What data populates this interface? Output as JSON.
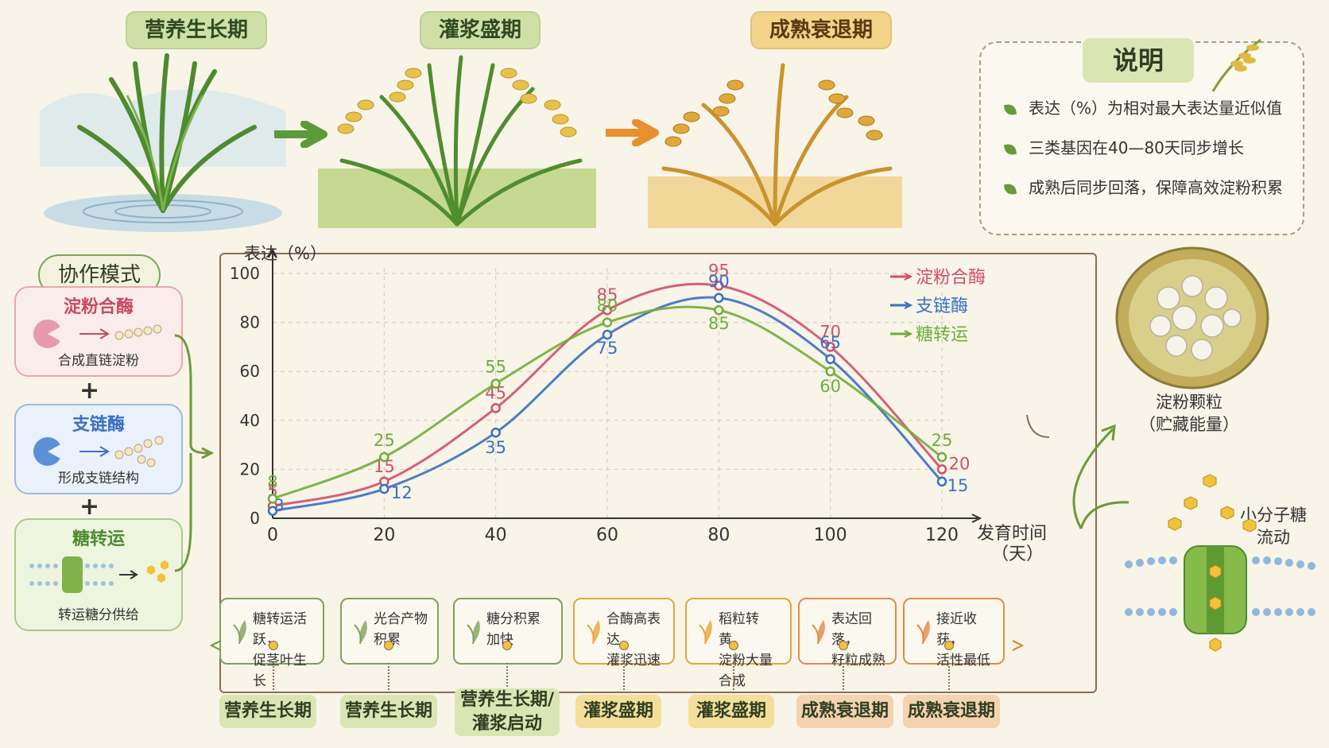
{
  "stages_top": [
    "营养生长期",
    "灌浆盛期",
    "成熟衰退期"
  ],
  "legend": {
    "title": "说明",
    "items": [
      "表达（%）为相对最大表达量近似值",
      "三类基因在40—80天同步增长",
      "成熟后同步回落，保障高效淀粉积累"
    ]
  },
  "mode": {
    "title": "协作模式",
    "cards": [
      {
        "title": "淀粉合酶",
        "sub": "合成直链淀粉"
      },
      {
        "title": "支链酶",
        "sub": "形成支链结构"
      },
      {
        "title": "糖转运",
        "sub": "转运糖分供给"
      }
    ],
    "plus": "+"
  },
  "chart_data": {
    "type": "line",
    "ylabel": "表达（%）",
    "xlabel": "发育时间",
    "xlabel_unit": "（天）",
    "x": [
      0,
      20,
      40,
      60,
      80,
      100,
      120
    ],
    "xlim": [
      0,
      120
    ],
    "ylim": [
      0,
      100
    ],
    "yticks": [
      0,
      20,
      40,
      60,
      80,
      100
    ],
    "grid": true,
    "legend_position": "top-right",
    "series": [
      {
        "name": "淀粉合酶",
        "color": "#d0506a",
        "values": [
          5,
          15,
          45,
          85,
          95,
          70,
          20
        ]
      },
      {
        "name": "支链酶",
        "color": "#3a6fc4",
        "values": [
          3,
          12,
          35,
          75,
          90,
          65,
          15
        ]
      },
      {
        "name": "糖转运",
        "color": "#6fae3a",
        "values": [
          8,
          25,
          55,
          80,
          85,
          60,
          25
        ]
      }
    ]
  },
  "stage_notes": [
    {
      "line1": "糖转运活跃，",
      "line2": "促茎叶生长",
      "color": "#7ea35a"
    },
    {
      "line1": "光合产物",
      "line2": "积累",
      "color": "#7ea35a"
    },
    {
      "line1": "糖分积累",
      "line2": "加快",
      "color": "#7ea35a"
    },
    {
      "line1": "合酶高表达，",
      "line2": "灌浆迅速",
      "color": "#e6a63a"
    },
    {
      "line1": "稻粒转黄，",
      "line2": "淀粉大量合成",
      "color": "#e6a63a"
    },
    {
      "line1": "表达回落，",
      "line2": "籽粒成熟",
      "color": "#e08a4a"
    },
    {
      "line1": "接近收获，",
      "line2": "活性最低",
      "color": "#e08a4a"
    }
  ],
  "bottom_stages": [
    {
      "line1": "营养生长期",
      "line2": "",
      "color": "#d9e6b4"
    },
    {
      "line1": "营养生长期",
      "line2": "",
      "color": "#d9e6b4"
    },
    {
      "line1": "营养生长期/",
      "line2": "灌浆启动",
      "color": "#d9e6b4"
    },
    {
      "line1": "灌浆盛期",
      "line2": "",
      "color": "#f3df9a"
    },
    {
      "line1": "灌浆盛期",
      "line2": "",
      "color": "#f3df9a"
    },
    {
      "line1": "成熟衰退期",
      "line2": "",
      "color": "#f3d3b0"
    },
    {
      "line1": "成熟衰退期",
      "line2": "",
      "color": "#f3d3b0"
    }
  ],
  "starch": {
    "line1": "淀粉颗粒",
    "line2": "（贮藏能量）"
  },
  "sugar": {
    "line1": "小分子糖",
    "line2": "流动"
  }
}
